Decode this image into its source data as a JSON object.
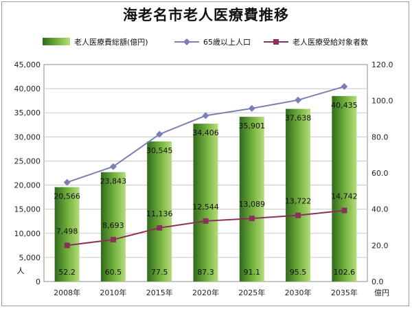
{
  "chart_data": {
    "type": "bar",
    "title": "海老名市老人医療費推移",
    "categories": [
      "2008年",
      "2010年",
      "2015年",
      "2020年",
      "2025年",
      "2030年",
      "2035年"
    ],
    "series": [
      {
        "name": "老人医療費総額(億円)",
        "kind": "bar",
        "axis": "right",
        "values": [
          52.2,
          60.5,
          77.5,
          87.3,
          91.1,
          95.5,
          102.6
        ],
        "color": "#6aa33a"
      },
      {
        "name": "65歳以上人口",
        "kind": "line",
        "axis": "left",
        "marker": "diamond",
        "values": [
          20566,
          23843,
          30545,
          34406,
          35901,
          37638,
          40435
        ],
        "color": "#7b7fb5"
      },
      {
        "name": "老人医療受給対象者数",
        "kind": "line",
        "axis": "left",
        "marker": "square",
        "values": [
          7498,
          8693,
          11136,
          12544,
          13089,
          13722,
          14742
        ],
        "color": "#8b2f5b"
      }
    ],
    "y_left": {
      "unit": "人",
      "min": 0,
      "max": 45000,
      "ticks": [
        "0",
        "5,000",
        "10,000",
        "15,000",
        "20,000",
        "25,000",
        "30,000",
        "35,000",
        "40,000",
        "45,000"
      ]
    },
    "y_right": {
      "unit": "億円",
      "min": 0,
      "max": 120,
      "ticks": [
        "0.0",
        "20.0",
        "40.0",
        "60.0",
        "80.0",
        "100.0",
        "120.0"
      ]
    },
    "data_labels": {
      "population": [
        "20,566",
        "23,843",
        "30,545",
        "34,406",
        "35,901",
        "37,638",
        "40,435"
      ],
      "recipients": [
        "7,498",
        "8,693",
        "11,136",
        "12,544",
        "13,089",
        "13,722",
        "14,742"
      ],
      "cost": [
        "52.2",
        "60.5",
        "77.5",
        "87.3",
        "91.1",
        "95.5",
        "102.6"
      ]
    },
    "grid": true,
    "legend_position": "top"
  }
}
